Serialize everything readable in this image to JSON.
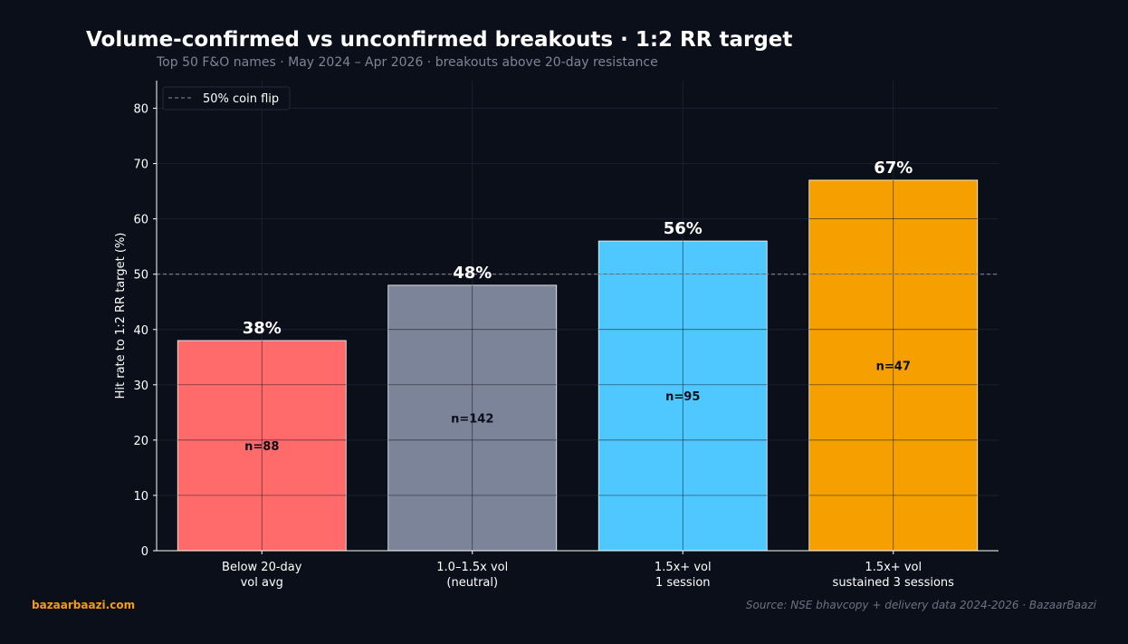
{
  "header": {
    "title": "Volume-confirmed vs unconfirmed breakouts · 1:2 RR target",
    "subtitle": "Top 50 F&O names · May 2024 – Apr 2026 · breakouts above 20-day resistance"
  },
  "footer": {
    "brand": "bazaarbaazi.com",
    "source": "Source: NSE bhavcopy + delivery data 2024-2026  ·  BazaarBaazi"
  },
  "colors": {
    "background": "#0b0f1a",
    "bars": [
      "#ff6b6b",
      "#7b8499",
      "#4fc8ff",
      "#f5a000"
    ],
    "value_label": "#ffffff",
    "count_label": "#0b0f1a",
    "reference_line": "#8a909c"
  },
  "chart_data": {
    "type": "bar",
    "title": "Volume-confirmed vs unconfirmed breakouts · 1:2 RR target",
    "subtitle": "Top 50 F&O names · May 2024 – Apr 2026 · breakouts above 20-day resistance",
    "xlabel": "",
    "ylabel": "Hit rate to 1:2 RR target (%)",
    "categories": [
      [
        "Below 20-day",
        "vol avg"
      ],
      [
        "1.0–1.5x vol",
        "(neutral)"
      ],
      [
        "1.5x+ vol",
        "1 session"
      ],
      [
        "1.5x+ vol",
        "sustained 3 sessions"
      ]
    ],
    "values": [
      38,
      48,
      56,
      67
    ],
    "value_labels": [
      "38%",
      "48%",
      "56%",
      "67%"
    ],
    "counts": [
      "n=88",
      "n=142",
      "n=95",
      "n=47"
    ],
    "ylim": [
      0,
      85
    ],
    "yticks": [
      0,
      10,
      20,
      30,
      40,
      50,
      60,
      70,
      80
    ],
    "reference_line": {
      "y": 50,
      "label": "50% coin flip",
      "style": "dashed"
    },
    "legend": {
      "position": "top-left",
      "entries": [
        "50% coin flip"
      ]
    },
    "grid": true
  }
}
